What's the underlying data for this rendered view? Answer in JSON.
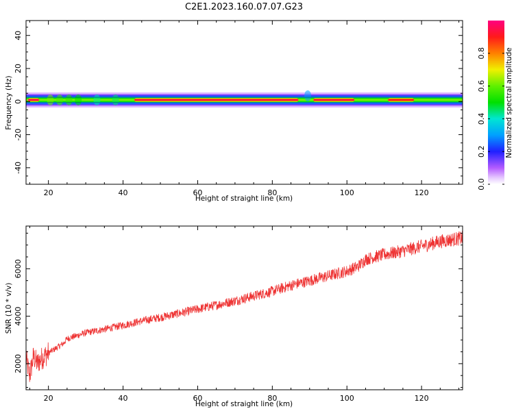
{
  "title": "C2E1.2023.160.07.07.G23",
  "chart_data": [
    {
      "type": "heatmap",
      "xlabel": "Height of straight line (km)",
      "ylabel": "Frequency (Hz)",
      "xlim": [
        14,
        131
      ],
      "ylim": [
        -50,
        49
      ],
      "xticks": [
        20,
        40,
        60,
        80,
        100,
        120
      ],
      "yticks": [
        -40,
        -20,
        0,
        20,
        40
      ],
      "colorbar": {
        "label": "Normalized spectral amplitude",
        "range": [
          0,
          1
        ],
        "ticks": [
          "0.0",
          "0.2",
          "0.4",
          "0.6",
          "0.8"
        ],
        "colormap": "rainbow"
      },
      "band": {
        "center_freq": 1,
        "peak_segments": [
          {
            "x": [
              14.5,
              17.5
            ],
            "level": 0.95
          },
          {
            "x": [
              43,
              87
            ],
            "level": 0.93
          },
          {
            "x": [
              91,
              102
            ],
            "level": 0.93
          },
          {
            "x": [
              111,
              118
            ],
            "level": 0.9
          }
        ]
      }
    },
    {
      "type": "line",
      "xlabel": "Height of straight line (km)",
      "ylabel": "SNR (10 * v/v)",
      "xlim": [
        14,
        131
      ],
      "ylim": [
        900,
        7800
      ],
      "xticks": [
        20,
        40,
        60,
        80,
        100,
        120
      ],
      "yticks": [
        2000,
        4000,
        6000
      ],
      "color": "#ee3333",
      "trend": {
        "x": [
          14,
          15,
          16,
          17,
          18,
          20,
          22,
          24,
          25,
          28,
          30,
          35,
          40,
          45,
          50,
          55,
          60,
          65,
          70,
          75,
          80,
          85,
          90,
          95,
          100,
          103,
          105,
          110,
          115,
          120,
          125,
          131
        ],
        "y": [
          2200,
          1500,
          2300,
          2000,
          2200,
          2450,
          2650,
          2850,
          3050,
          3200,
          3300,
          3450,
          3620,
          3800,
          3950,
          4120,
          4300,
          4470,
          4650,
          4850,
          5050,
          5300,
          5500,
          5700,
          5900,
          6100,
          6400,
          6600,
          6750,
          6950,
          7150,
          7300
        ]
      }
    }
  ]
}
